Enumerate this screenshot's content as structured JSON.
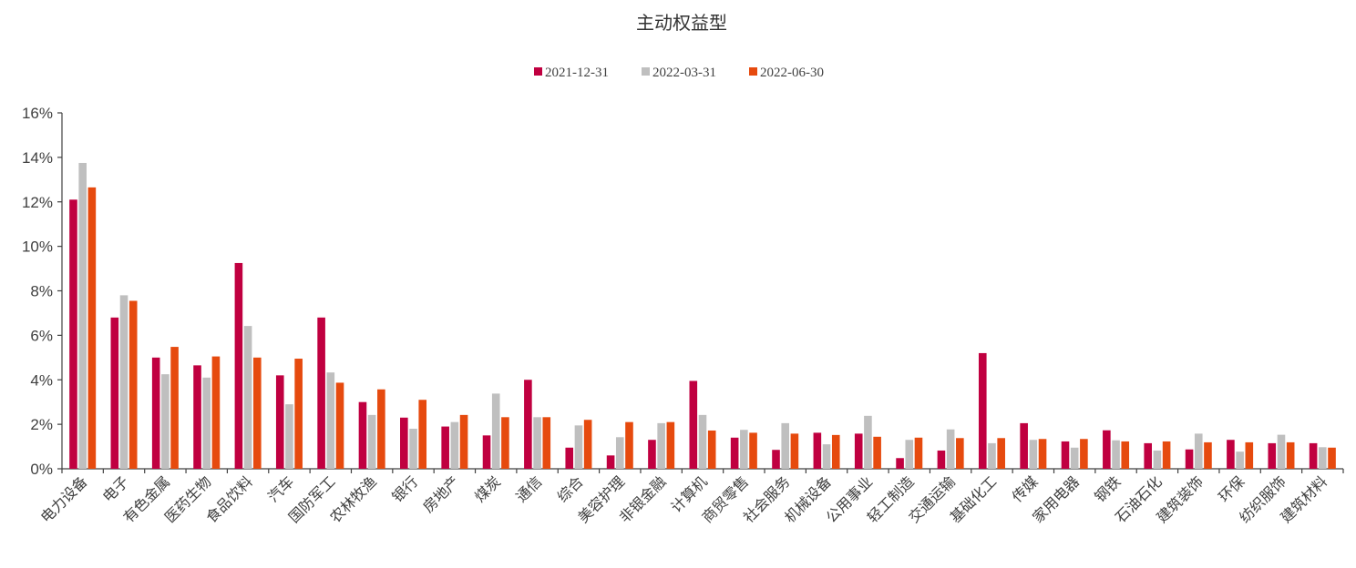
{
  "chart_data": {
    "type": "bar",
    "title": "主动权益型",
    "xlabel": "",
    "ylabel": "",
    "ylim": [
      0,
      16
    ],
    "yticks": [
      "0%",
      "2%",
      "4%",
      "6%",
      "8%",
      "10%",
      "12%",
      "14%",
      "16%"
    ],
    "ytick_values": [
      0,
      2,
      4,
      6,
      8,
      10,
      12,
      14,
      16
    ],
    "grid": false,
    "legend": "top-center",
    "categories": [
      "电力设备",
      "电子",
      "有色金属",
      "医药生物",
      "食品饮料",
      "汽车",
      "国防军工",
      "农林牧渔",
      "银行",
      "房地产",
      "煤炭",
      "通信",
      "综合",
      "美容护理",
      "非银金融",
      "计算机",
      "商贸零售",
      "社会服务",
      "机械设备",
      "公用事业",
      "轻工制造",
      "交通运输",
      "基础化工",
      "传媒",
      "家用电器",
      "钢铁",
      "石油石化",
      "建筑装饰",
      "环保",
      "纺织服饰",
      "建筑材料"
    ],
    "series": [
      {
        "name": "2021-12-31",
        "color": "#C00040",
        "values": [
          12.1,
          6.8,
          5.0,
          4.65,
          9.25,
          4.2,
          6.8,
          3.0,
          2.3,
          1.9,
          1.5,
          4.0,
          0.95,
          0.6,
          1.3,
          3.95,
          1.4,
          0.85,
          1.62,
          1.58,
          0.48,
          0.82,
          5.2,
          2.05,
          1.23,
          1.73,
          1.15,
          0.87,
          1.3,
          1.15,
          1.15
        ]
      },
      {
        "name": "2022-03-31",
        "color": "#BFBFBF",
        "values": [
          13.75,
          7.8,
          4.25,
          4.1,
          6.42,
          2.9,
          4.33,
          2.42,
          1.8,
          2.1,
          3.38,
          2.32,
          1.95,
          1.42,
          2.05,
          2.42,
          1.75,
          2.05,
          1.1,
          2.38,
          1.3,
          1.77,
          1.15,
          1.3,
          0.95,
          1.28,
          0.82,
          1.58,
          0.77,
          1.53,
          0.97
        ]
      },
      {
        "name": "2022-06-30",
        "color": "#E64A0E",
        "values": [
          12.65,
          7.55,
          5.48,
          5.05,
          5.0,
          4.95,
          3.87,
          3.57,
          3.1,
          2.42,
          2.32,
          2.32,
          2.2,
          2.1,
          2.1,
          1.72,
          1.62,
          1.58,
          1.52,
          1.44,
          1.4,
          1.38,
          1.38,
          1.34,
          1.34,
          1.23,
          1.23,
          1.19,
          1.19,
          1.19,
          0.95
        ]
      }
    ]
  }
}
